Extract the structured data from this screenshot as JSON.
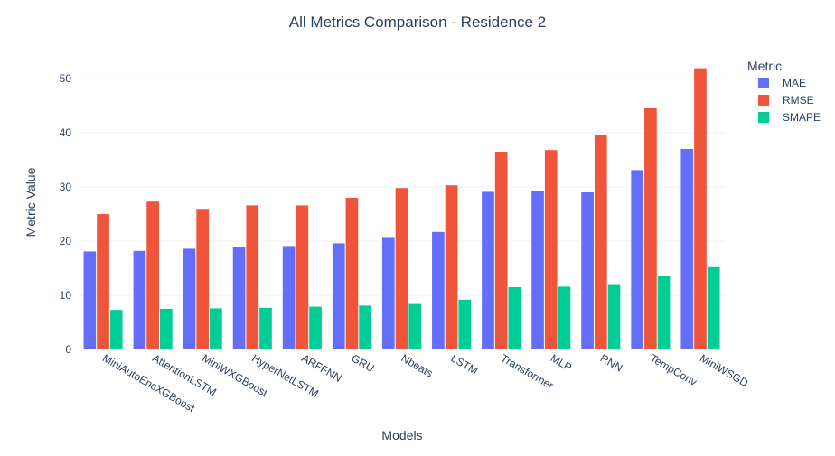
{
  "chart_data": {
    "type": "bar",
    "title": "All Metrics Comparison - Residence 2",
    "xlabel": "Models",
    "ylabel": "Metric Value",
    "ylim": [
      0,
      55
    ],
    "yticks": [
      0,
      10,
      20,
      30,
      40,
      50
    ],
    "grid": true,
    "legend_title": "Metric",
    "legend_position": "top-right",
    "categories": [
      "MiniAutoEncXGBoost",
      "AttentionLSTM",
      "MiniWXGBoost",
      "HyperNetLSTM",
      "ARFFNN",
      "GRU",
      "Nbeats",
      "LSTM",
      "Transformer",
      "MLP",
      "RNN",
      "TempConv",
      "MiniWSGD"
    ],
    "series": [
      {
        "name": "MAE",
        "color": "#636efa",
        "values": [
          18.1,
          18.2,
          18.6,
          19.0,
          19.1,
          19.6,
          20.6,
          21.7,
          29.1,
          29.2,
          29.0,
          33.1,
          37.0
        ]
      },
      {
        "name": "RMSE",
        "color": "#ef553b",
        "values": [
          25.0,
          27.3,
          25.8,
          26.6,
          26.6,
          28.0,
          29.8,
          30.3,
          36.5,
          36.8,
          39.5,
          44.5,
          51.9
        ]
      },
      {
        "name": "SMAPE",
        "color": "#00cc96",
        "values": [
          7.3,
          7.5,
          7.6,
          7.7,
          7.9,
          8.1,
          8.4,
          9.2,
          11.5,
          11.6,
          11.9,
          13.5,
          15.2
        ]
      }
    ]
  }
}
